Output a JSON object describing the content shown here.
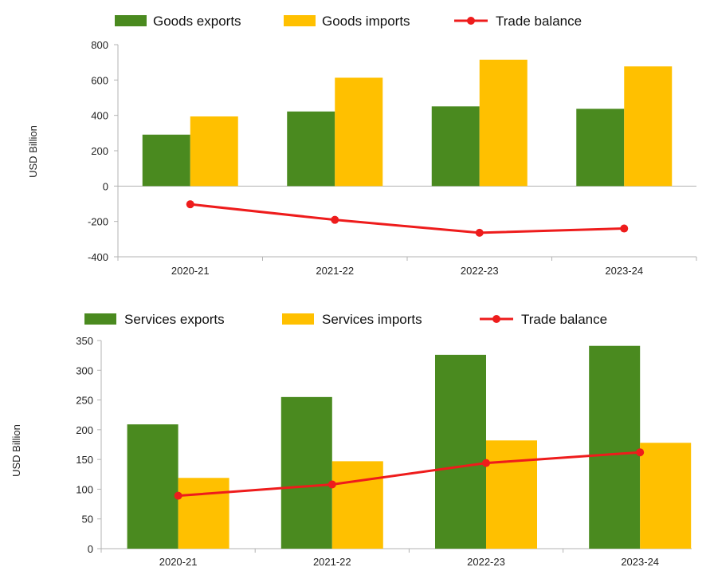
{
  "chart_data": [
    {
      "type": "bar",
      "categories": [
        "2020-21",
        "2021-22",
        "2022-23",
        "2023-24"
      ],
      "series": [
        {
          "name": "Goods exports",
          "kind": "bar",
          "color": "#4a8a1f",
          "values": [
            291,
            422,
            451,
            437
          ]
        },
        {
          "name": "Goods imports",
          "kind": "bar",
          "color": "#ffc000",
          "values": [
            394,
            613,
            715,
            677
          ]
        },
        {
          "name": "Trade balance",
          "kind": "line",
          "color": "#ee1c1c",
          "values": [
            -103,
            -191,
            -264,
            -240
          ]
        }
      ],
      "ylabel": "USD Billion",
      "ylim": [
        -400,
        800
      ],
      "yticks": [
        800,
        600,
        400,
        200,
        0,
        -200,
        -400
      ],
      "ytick_labels": [
        "800",
        "600",
        "400",
        "200",
        "0",
        "-200",
        "-400"
      ],
      "grid": false,
      "legend": "top"
    },
    {
      "type": "bar",
      "categories": [
        "2020-21",
        "2021-22",
        "2022-23",
        "2023-24"
      ],
      "series": [
        {
          "name": "Services exports",
          "kind": "bar",
          "color": "#4a8a1f",
          "values": [
            209,
            255,
            326,
            341
          ]
        },
        {
          "name": "Services imports",
          "kind": "bar",
          "color": "#ffc000",
          "values": [
            119,
            147,
            182,
            178
          ]
        },
        {
          "name": "Trade balance",
          "kind": "line",
          "color": "#ee1c1c",
          "values": [
            89,
            108,
            144,
            162
          ]
        }
      ],
      "ylabel": "USD Billion",
      "ylim": [
        0,
        350
      ],
      "yticks": [
        350,
        300,
        250,
        200,
        150,
        100,
        50,
        0
      ],
      "ytick_labels": [
        "350",
        "300",
        "250",
        "200",
        "150",
        "100",
        "50",
        "0"
      ],
      "grid": false,
      "legend": "top"
    }
  ]
}
